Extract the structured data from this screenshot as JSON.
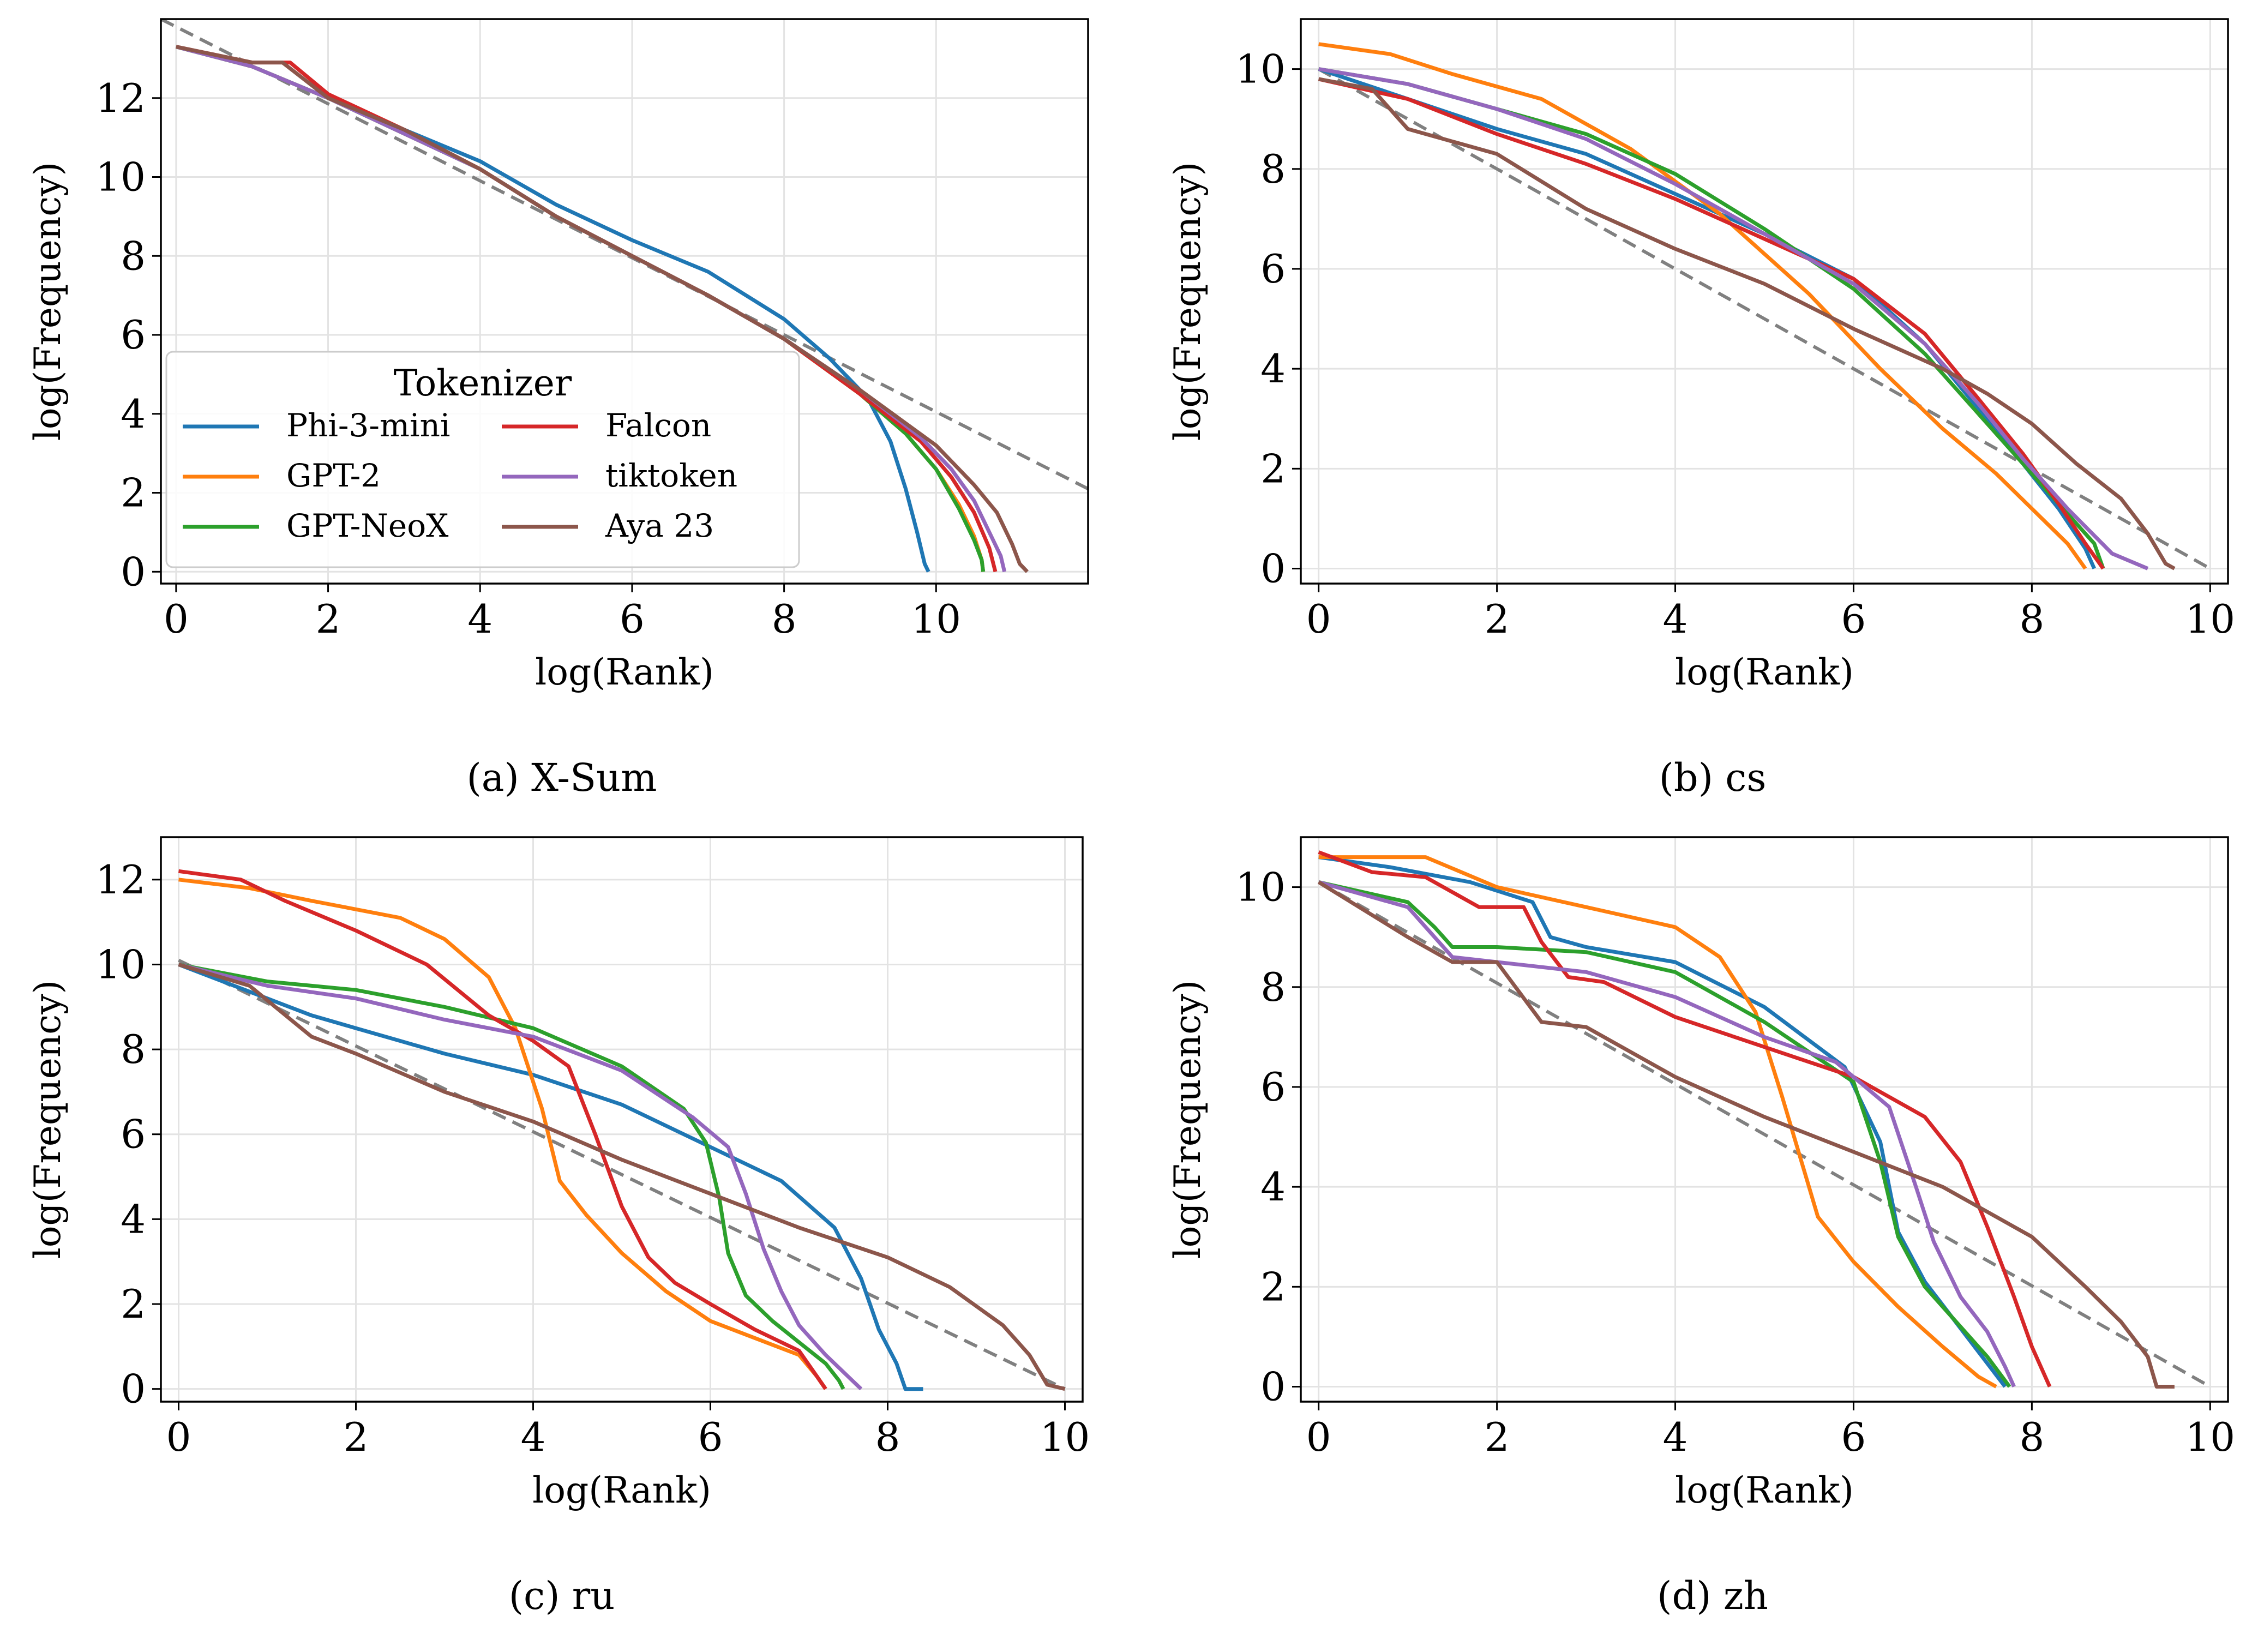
{
  "legend": {
    "title": "Tokenizer",
    "entries": [
      {
        "label": "Phi-3-mini",
        "color": "#1f77b4"
      },
      {
        "label": "GPT-2",
        "color": "#ff7f0e"
      },
      {
        "label": "GPT-NeoX",
        "color": "#2ca02c"
      },
      {
        "label": "Falcon",
        "color": "#d62728"
      },
      {
        "label": "tiktoken",
        "color": "#9467bd"
      },
      {
        "label": "Aya 23",
        "color": "#8c564b"
      }
    ]
  },
  "reference_line": {
    "style": "dashed",
    "color": "#808080"
  },
  "chart_data": [
    {
      "type": "line",
      "caption": "(a) X-Sum",
      "xlabel": "log(Rank)",
      "ylabel": "log(Frequency)",
      "xlim": [
        -0.2,
        12
      ],
      "ylim": [
        -0.3,
        14
      ],
      "xticks": [
        0,
        2,
        4,
        6,
        8,
        10
      ],
      "yticks": [
        0,
        2,
        4,
        6,
        8,
        10,
        12
      ],
      "grid": true,
      "legend_position": "lower-left",
      "reference": [
        [
          -0.2,
          14.0
        ],
        [
          12.0,
          2.1
        ]
      ],
      "series": [
        {
          "name": "Phi-3-mini",
          "x": [
            0,
            1,
            2,
            3,
            4,
            5,
            6,
            7,
            8,
            8.6,
            9.1,
            9.4,
            9.6,
            9.75,
            9.85,
            9.9
          ],
          "y": [
            13.3,
            12.8,
            12.0,
            11.2,
            10.4,
            9.3,
            8.4,
            7.6,
            6.4,
            5.4,
            4.4,
            3.3,
            2.1,
            1.0,
            0.2,
            0
          ]
        },
        {
          "name": "GPT-2",
          "x": [
            0,
            1,
            2,
            3,
            4,
            5,
            6,
            7,
            8,
            9,
            9.6,
            10.0,
            10.3,
            10.5,
            10.6,
            10.62
          ],
          "y": [
            13.3,
            12.8,
            12.0,
            11.1,
            10.2,
            9.0,
            8.0,
            7.0,
            5.9,
            4.5,
            3.5,
            2.6,
            1.7,
            0.9,
            0.3,
            0
          ]
        },
        {
          "name": "GPT-NeoX",
          "x": [
            0,
            1,
            2,
            3,
            4,
            5,
            6,
            7,
            8,
            9,
            9.6,
            10.0,
            10.3,
            10.5,
            10.6,
            10.62
          ],
          "y": [
            13.3,
            12.8,
            12.0,
            11.1,
            10.2,
            9.0,
            8.0,
            7.0,
            5.9,
            4.5,
            3.5,
            2.6,
            1.6,
            0.8,
            0.3,
            0
          ]
        },
        {
          "name": "Falcon",
          "x": [
            0,
            1,
            1.5,
            2,
            3,
            4,
            5,
            6,
            7,
            8,
            9,
            9.8,
            10.2,
            10.5,
            10.7,
            10.78
          ],
          "y": [
            13.3,
            12.9,
            12.9,
            12.1,
            11.2,
            10.2,
            9.0,
            8.0,
            7.0,
            5.9,
            4.5,
            3.3,
            2.4,
            1.5,
            0.6,
            0
          ]
        },
        {
          "name": "tiktoken",
          "x": [
            0,
            1,
            2,
            3,
            4,
            5,
            6,
            7,
            8,
            9,
            9.8,
            10.2,
            10.5,
            10.7,
            10.85,
            10.9
          ],
          "y": [
            13.3,
            12.8,
            12.0,
            11.1,
            10.2,
            9.0,
            8.0,
            7.0,
            5.9,
            4.6,
            3.4,
            2.6,
            1.8,
            1.0,
            0.4,
            0
          ]
        },
        {
          "name": "Aya 23",
          "x": [
            0,
            1,
            1.4,
            2,
            3,
            4,
            5,
            6,
            7,
            8,
            9,
            10,
            10.5,
            10.8,
            11.0,
            11.1,
            11.2
          ],
          "y": [
            13.3,
            12.9,
            12.9,
            12.0,
            11.2,
            10.2,
            9.0,
            8.0,
            7.0,
            5.9,
            4.6,
            3.2,
            2.2,
            1.5,
            0.7,
            0.2,
            0
          ]
        }
      ]
    },
    {
      "type": "line",
      "caption": "(b) cs",
      "xlabel": "log(Rank)",
      "ylabel": "log(Frequency)",
      "xlim": [
        -0.2,
        10.2
      ],
      "ylim": [
        -0.3,
        11
      ],
      "xticks": [
        0,
        2,
        4,
        6,
        8,
        10
      ],
      "yticks": [
        0,
        2,
        4,
        6,
        8,
        10
      ],
      "grid": true,
      "reference": [
        [
          0,
          10.0
        ],
        [
          10.0,
          0
        ]
      ],
      "series": [
        {
          "name": "Phi-3-mini",
          "x": [
            0,
            1,
            2,
            3,
            4,
            5,
            6,
            6.8,
            7.4,
            7.9,
            8.3,
            8.6,
            8.7
          ],
          "y": [
            10.0,
            9.4,
            8.8,
            8.3,
            7.5,
            6.7,
            5.8,
            4.5,
            3.2,
            2.1,
            1.2,
            0.4,
            0
          ]
        },
        {
          "name": "GPT-2",
          "x": [
            0,
            0.8,
            1.5,
            2.5,
            3.5,
            4.5,
            5.5,
            6.3,
            7.0,
            7.6,
            8.0,
            8.4,
            8.6
          ],
          "y": [
            10.5,
            10.3,
            9.9,
            9.4,
            8.4,
            7.1,
            5.5,
            4.0,
            2.8,
            1.9,
            1.2,
            0.5,
            0
          ]
        },
        {
          "name": "GPT-NeoX",
          "x": [
            0,
            1,
            2,
            3,
            4,
            5,
            6,
            6.8,
            7.4,
            7.9,
            8.3,
            8.7,
            8.8
          ],
          "y": [
            10.0,
            9.7,
            9.2,
            8.7,
            7.9,
            6.8,
            5.6,
            4.3,
            3.1,
            2.1,
            1.3,
            0.5,
            0
          ]
        },
        {
          "name": "Falcon",
          "x": [
            0,
            1,
            2,
            3,
            4,
            5,
            6,
            6.8,
            7.4,
            7.9,
            8.3,
            8.6,
            8.8
          ],
          "y": [
            9.8,
            9.4,
            8.7,
            8.1,
            7.4,
            6.6,
            5.8,
            4.7,
            3.4,
            2.3,
            1.3,
            0.5,
            0
          ]
        },
        {
          "name": "tiktoken",
          "x": [
            0,
            1,
            2,
            3,
            4,
            5,
            6,
            6.8,
            7.4,
            7.9,
            8.4,
            8.9,
            9.3
          ],
          "y": [
            10.0,
            9.7,
            9.2,
            8.6,
            7.7,
            6.7,
            5.7,
            4.5,
            3.3,
            2.2,
            1.2,
            0.3,
            0
          ]
        },
        {
          "name": "Aya 23",
          "x": [
            0,
            0.6,
            1,
            2,
            3,
            4,
            5,
            6,
            7,
            7.5,
            8,
            8.5,
            9.0,
            9.3,
            9.5,
            9.6
          ],
          "y": [
            9.8,
            9.6,
            8.8,
            8.3,
            7.2,
            6.4,
            5.7,
            4.8,
            4.0,
            3.5,
            2.9,
            2.1,
            1.4,
            0.7,
            0.1,
            0
          ]
        }
      ]
    },
    {
      "type": "line",
      "caption": "(c) ru",
      "xlabel": "log(Rank)",
      "ylabel": "log(Frequency)",
      "xlim": [
        -0.2,
        10.2
      ],
      "ylim": [
        -0.3,
        13
      ],
      "xticks": [
        0,
        2,
        4,
        6,
        8,
        10
      ],
      "yticks": [
        0,
        2,
        4,
        6,
        8,
        10,
        12
      ],
      "grid": true,
      "reference": [
        [
          0,
          10.1
        ],
        [
          10.0,
          0
        ]
      ],
      "series": [
        {
          "name": "Phi-3-mini",
          "x": [
            0,
            1,
            1.5,
            2,
            3,
            4,
            5,
            6,
            6.8,
            7.4,
            7.7,
            7.9,
            8.1,
            8.2,
            8.4
          ],
          "y": [
            10.0,
            9.2,
            8.8,
            8.5,
            7.9,
            7.4,
            6.7,
            5.7,
            4.9,
            3.8,
            2.6,
            1.4,
            0.6,
            0,
            0
          ]
        },
        {
          "name": "GPT-2",
          "x": [
            0,
            0.8,
            1.5,
            2.5,
            3.0,
            3.5,
            3.8,
            4.1,
            4.3,
            4.6,
            5.0,
            5.5,
            6.0,
            6.5,
            7.0,
            7.2,
            7.3
          ],
          "y": [
            12.0,
            11.8,
            11.5,
            11.1,
            10.6,
            9.7,
            8.5,
            6.6,
            4.9,
            4.1,
            3.2,
            2.3,
            1.6,
            1.2,
            0.8,
            0.3,
            0
          ]
        },
        {
          "name": "GPT-NeoX",
          "x": [
            0,
            1,
            2,
            3,
            4,
            5,
            5.7,
            5.95,
            6.1,
            6.2,
            6.4,
            6.7,
            7.0,
            7.3,
            7.45,
            7.5
          ],
          "y": [
            10.0,
            9.6,
            9.4,
            9.0,
            8.5,
            7.6,
            6.6,
            5.8,
            4.5,
            3.2,
            2.2,
            1.6,
            1.1,
            0.6,
            0.2,
            0
          ]
        },
        {
          "name": "Falcon",
          "x": [
            0,
            0.7,
            1.2,
            2,
            2.8,
            3.5,
            4.0,
            4.4,
            4.7,
            5.0,
            5.3,
            5.6,
            6.0,
            6.5,
            7.0,
            7.2,
            7.3
          ],
          "y": [
            12.2,
            12.0,
            11.5,
            10.8,
            10.0,
            8.8,
            8.2,
            7.6,
            6.0,
            4.3,
            3.1,
            2.5,
            2.0,
            1.4,
            0.9,
            0.3,
            0
          ]
        },
        {
          "name": "tiktoken",
          "x": [
            0,
            1,
            2,
            3,
            4,
            5,
            5.8,
            6.2,
            6.4,
            6.6,
            6.8,
            7.0,
            7.3,
            7.6,
            7.7
          ],
          "y": [
            10.0,
            9.5,
            9.2,
            8.7,
            8.3,
            7.5,
            6.4,
            5.7,
            4.6,
            3.3,
            2.3,
            1.5,
            0.8,
            0.2,
            0
          ]
        },
        {
          "name": "Aya 23",
          "x": [
            0,
            0.8,
            1.5,
            2,
            3,
            4,
            5,
            6,
            7,
            8,
            8.7,
            9.3,
            9.6,
            9.8,
            10.0
          ],
          "y": [
            10.0,
            9.5,
            8.3,
            7.9,
            7.0,
            6.3,
            5.4,
            4.6,
            3.8,
            3.1,
            2.4,
            1.5,
            0.8,
            0.1,
            0
          ]
        }
      ]
    },
    {
      "type": "line",
      "caption": "(d) zh",
      "xlabel": "log(Rank)",
      "ylabel": "log(Frequency)",
      "xlim": [
        -0.2,
        10.2
      ],
      "ylim": [
        -0.3,
        11
      ],
      "xticks": [
        0,
        2,
        4,
        6,
        8,
        10
      ],
      "yticks": [
        0,
        2,
        4,
        6,
        8,
        10
      ],
      "grid": true,
      "reference": [
        [
          0,
          10.1
        ],
        [
          10.0,
          0
        ]
      ],
      "series": [
        {
          "name": "Phi-3-mini",
          "x": [
            0,
            0.8,
            1.7,
            2.4,
            2.6,
            3,
            4,
            5,
            5.9,
            6.3,
            6.5,
            6.8,
            7.1,
            7.4,
            7.7
          ],
          "y": [
            10.6,
            10.4,
            10.1,
            9.7,
            9.0,
            8.8,
            8.5,
            7.6,
            6.4,
            4.9,
            3.1,
            2.1,
            1.4,
            0.7,
            0
          ]
        },
        {
          "name": "GPT-2",
          "x": [
            0,
            0.5,
            1.2,
            2.0,
            3.0,
            4.0,
            4.5,
            4.9,
            5.2,
            5.4,
            5.6,
            6.0,
            6.5,
            7.0,
            7.4,
            7.6
          ],
          "y": [
            10.6,
            10.6,
            10.6,
            10.0,
            9.6,
            9.2,
            8.6,
            7.5,
            5.8,
            4.6,
            3.4,
            2.5,
            1.6,
            0.8,
            0.2,
            0
          ]
        },
        {
          "name": "GPT-NeoX",
          "x": [
            0,
            1,
            1.3,
            1.5,
            2,
            3,
            4,
            5,
            6.0,
            6.3,
            6.5,
            6.8,
            7.2,
            7.5,
            7.75
          ],
          "y": [
            10.1,
            9.7,
            9.2,
            8.8,
            8.8,
            8.7,
            8.3,
            7.3,
            6.1,
            4.5,
            3.0,
            2.0,
            1.2,
            0.6,
            0
          ]
        },
        {
          "name": "Falcon",
          "x": [
            0,
            0.6,
            1.2,
            1.8,
            2.3,
            2.5,
            2.8,
            3.2,
            4.0,
            5.0,
            6.0,
            6.8,
            7.2,
            7.5,
            7.8,
            8.0,
            8.2
          ],
          "y": [
            10.7,
            10.3,
            10.2,
            9.6,
            9.6,
            8.9,
            8.2,
            8.1,
            7.4,
            6.8,
            6.2,
            5.4,
            4.5,
            3.2,
            1.8,
            0.8,
            0
          ]
        },
        {
          "name": "tiktoken",
          "x": [
            0,
            1,
            1.3,
            1.5,
            2,
            3,
            4,
            5,
            5.8,
            6.4,
            6.7,
            6.9,
            7.2,
            7.5,
            7.7,
            7.8
          ],
          "y": [
            10.1,
            9.6,
            9.0,
            8.6,
            8.5,
            8.3,
            7.8,
            7.0,
            6.5,
            5.6,
            4.0,
            2.9,
            1.8,
            1.1,
            0.4,
            0
          ]
        },
        {
          "name": "Aya 23",
          "x": [
            0,
            1,
            1.5,
            2,
            2.5,
            3,
            4,
            5,
            6,
            7,
            8,
            8.6,
            9.0,
            9.3,
            9.4,
            9.6
          ],
          "y": [
            10.1,
            9.0,
            8.5,
            8.5,
            7.3,
            7.2,
            6.2,
            5.4,
            4.7,
            4.0,
            3.0,
            2.0,
            1.3,
            0.6,
            0,
            0
          ]
        }
      ]
    }
  ]
}
